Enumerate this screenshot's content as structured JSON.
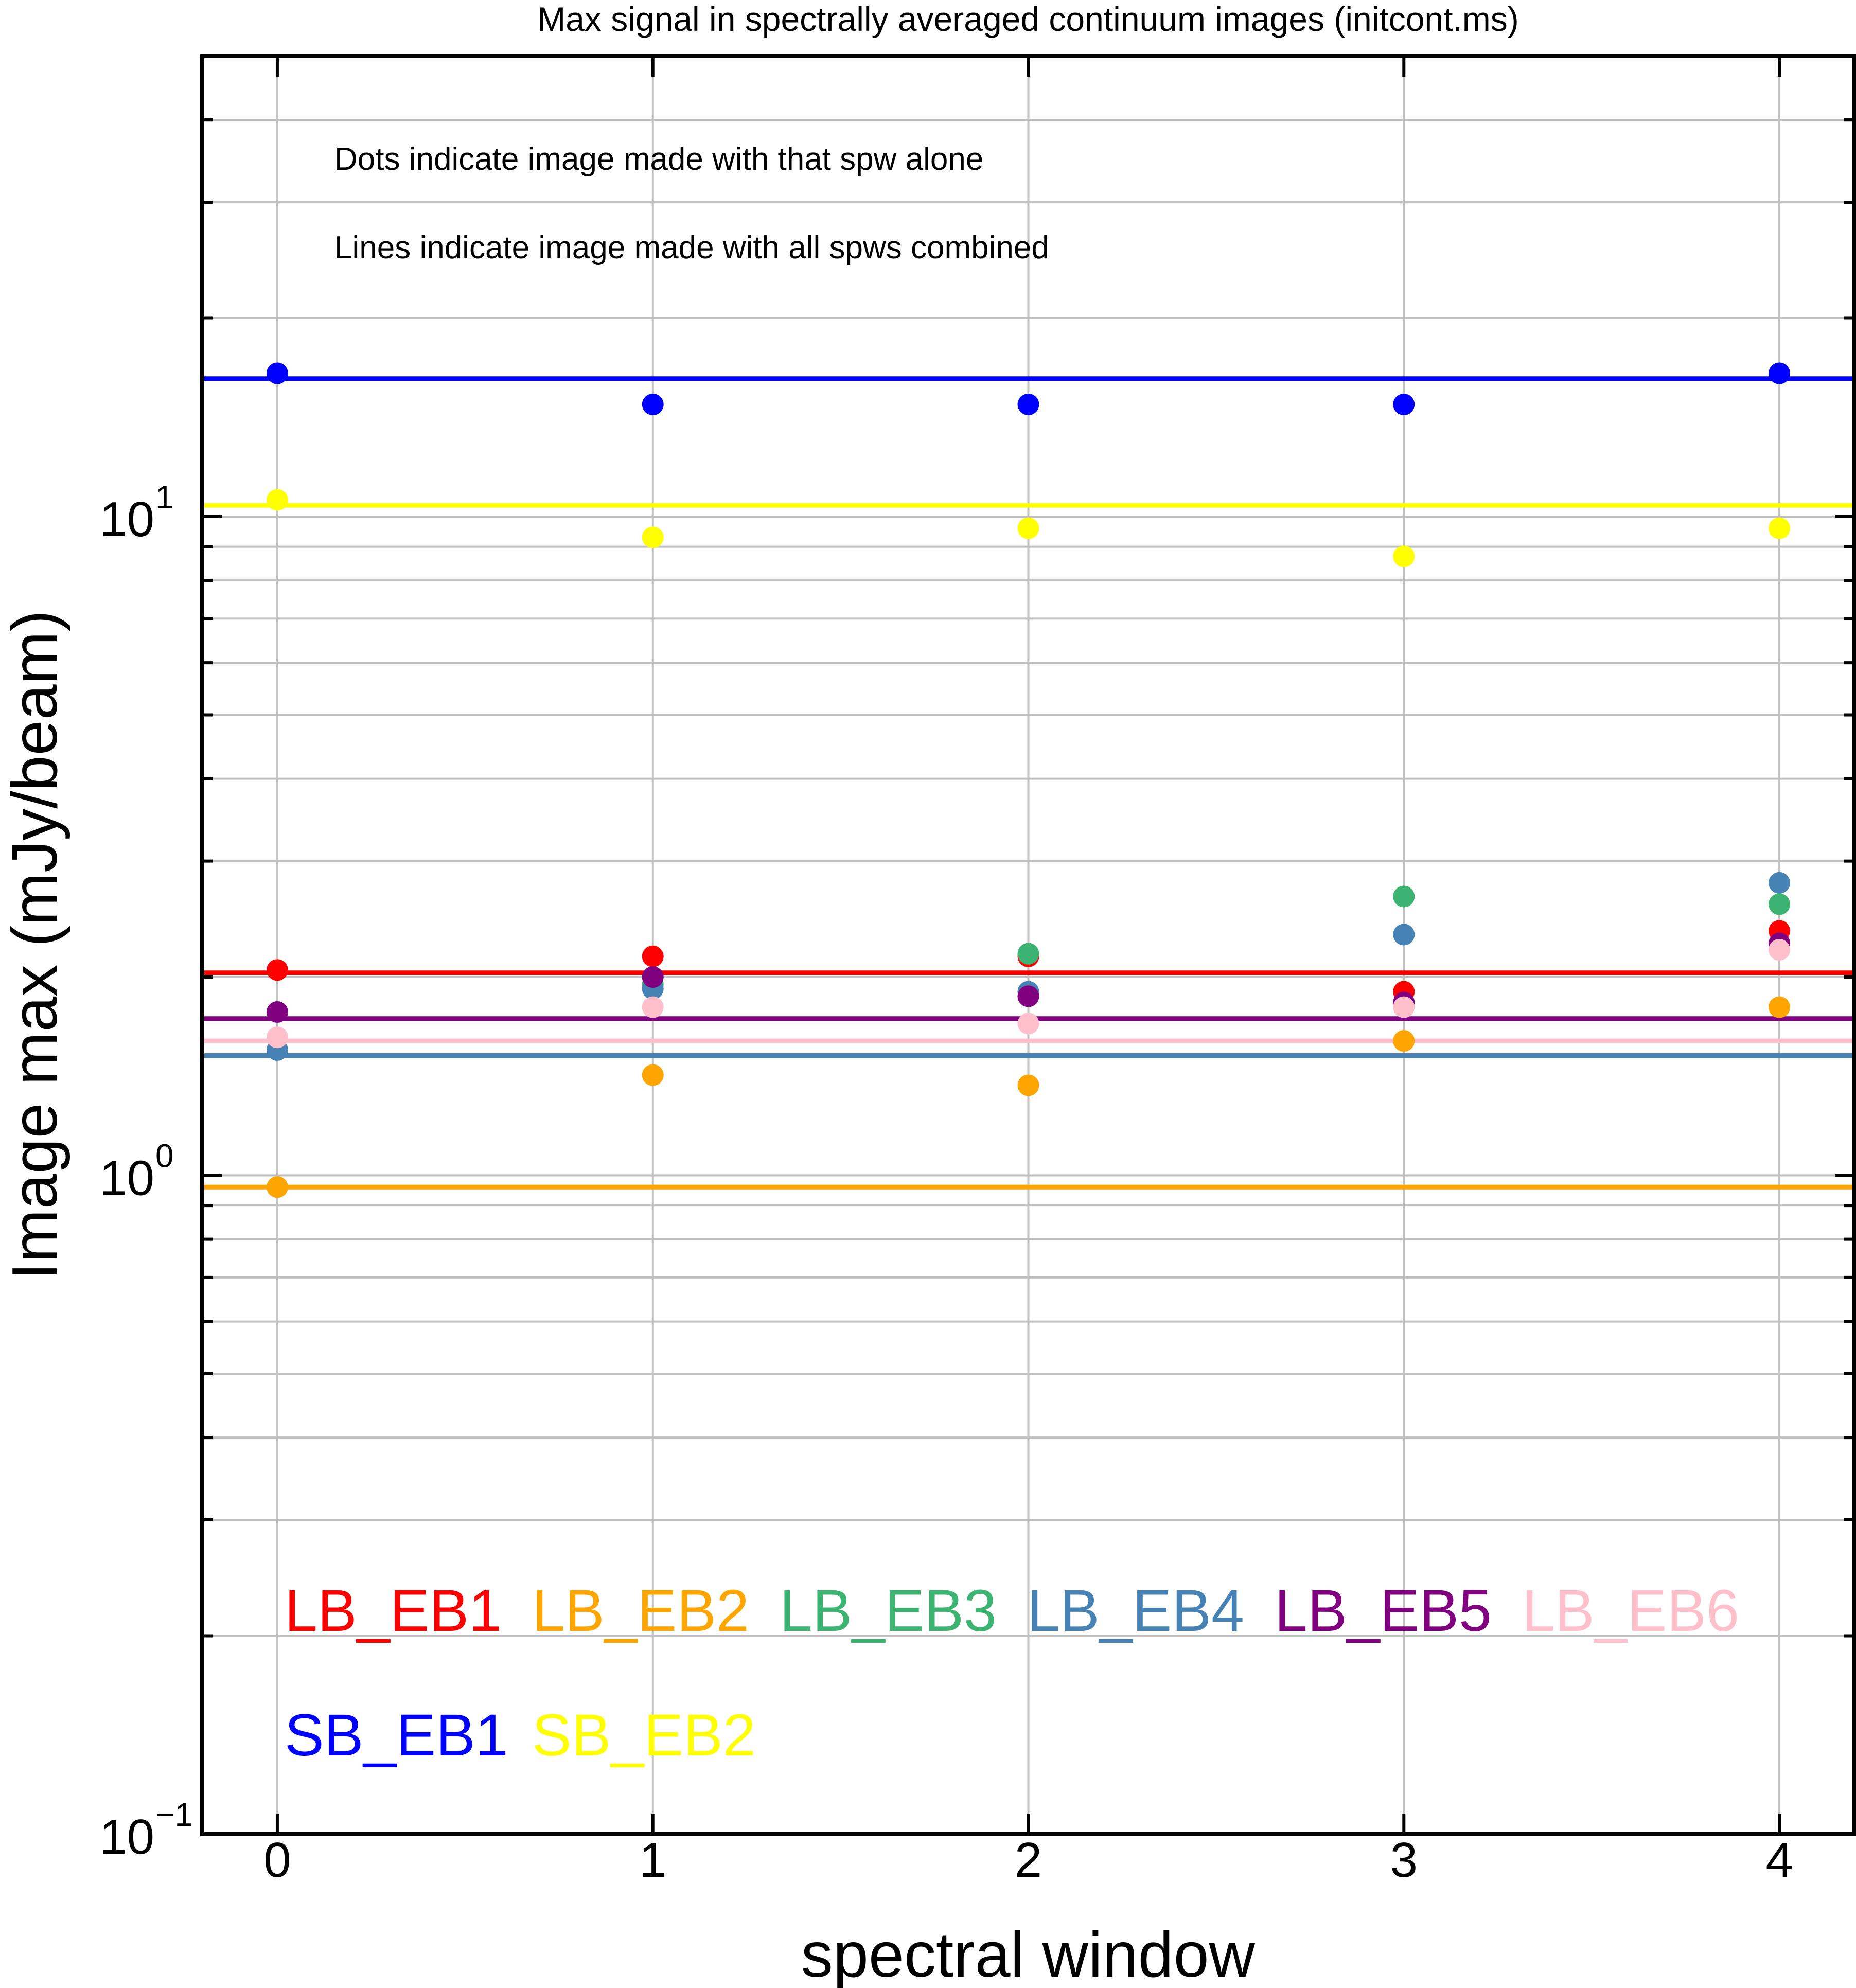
{
  "chart_data": {
    "type": "scatter",
    "title": "Max signal in spectrally averaged continuum images (initcont.ms)",
    "xlabel": "spectral window",
    "ylabel": "Image max (mJy/beam)",
    "x": [
      0,
      1,
      2,
      3,
      4
    ],
    "x_ticks": [
      "0",
      "1",
      "2",
      "3",
      "4"
    ],
    "xlim": [
      -0.2,
      4.2
    ],
    "y_scale": "log",
    "ylim": [
      0.1,
      50
    ],
    "y_ticks": [
      {
        "base": "10",
        "exp": "1",
        "value": 10
      },
      {
        "base": "10",
        "exp": "0",
        "value": 1
      },
      {
        "base": "10",
        "exp": "−1",
        "value": 0.1
      }
    ],
    "grid": true,
    "annotations": [
      "Dots indicate image made with that spw alone",
      "Lines indicate image made with all spws combined"
    ],
    "legend_placement": "bottom-left",
    "series": [
      {
        "name": "LB_EB1",
        "color": "#ff0000",
        "values": [
          2.05,
          2.15,
          2.15,
          1.9,
          2.35
        ],
        "combined": 2.03
      },
      {
        "name": "LB_EB2",
        "color": "#ffa500",
        "values": [
          0.96,
          1.42,
          1.37,
          1.6,
          1.8
        ],
        "combined": 0.96
      },
      {
        "name": "LB_EB3",
        "color": "#3cb371",
        "values": [
          1.55,
          1.95,
          2.17,
          2.65,
          2.58
        ],
        "combined": 1.52
      },
      {
        "name": "LB_EB4",
        "color": "#4682b4",
        "values": [
          1.55,
          1.92,
          1.9,
          2.32,
          2.78
        ],
        "combined": 1.52
      },
      {
        "name": "LB_EB5",
        "color": "#800080",
        "values": [
          1.77,
          2.0,
          1.87,
          1.83,
          2.25
        ],
        "combined": 1.73
      },
      {
        "name": "LB_EB6",
        "color": "#ffc0cb",
        "values": [
          1.62,
          1.8,
          1.7,
          1.8,
          2.2
        ],
        "combined": 1.6
      },
      {
        "name": "SB_EB1",
        "color": "#0000ff",
        "values": [
          16.5,
          14.8,
          14.8,
          14.8,
          16.5
        ],
        "combined": 16.2
      },
      {
        "name": "SB_EB2",
        "color": "#ffff00",
        "values": [
          10.6,
          9.3,
          9.6,
          8.7,
          9.6
        ],
        "combined": 10.4
      }
    ]
  }
}
